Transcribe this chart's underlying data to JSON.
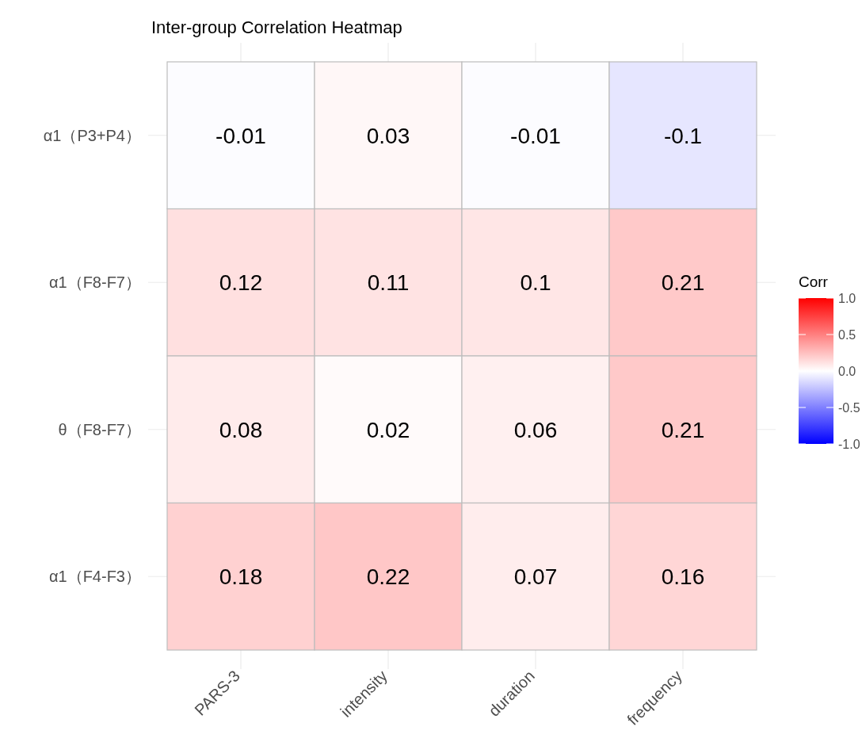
{
  "chart_data": {
    "type": "heatmap",
    "title": "Inter-group Correlation Heatmap",
    "categories": [
      "PARS-3",
      "intensity",
      "duration",
      "frequency"
    ],
    "y_categories": [
      "α1（P3+P4）",
      "α1（F8-F7）",
      "θ（F8-F7）",
      "α1（F4-F3）"
    ],
    "cells": [
      [
        -0.01,
        0.03,
        -0.01,
        -0.1
      ],
      [
        0.12,
        0.11,
        0.1,
        0.21
      ],
      [
        0.08,
        0.02,
        0.06,
        0.21
      ],
      [
        0.18,
        0.22,
        0.07,
        0.16
      ]
    ],
    "data_labels": true,
    "legend_title": "Corr",
    "clim": [
      -1,
      1
    ],
    "cticks": [
      {
        "value": 1,
        "label": "1.0"
      },
      {
        "value": 0.5,
        "label": "0.5"
      },
      {
        "value": 0,
        "label": "0.0"
      },
      {
        "value": -0.5,
        "label": "-0.5"
      },
      {
        "value": -1,
        "label": "-1.0"
      }
    ],
    "grid": true
  }
}
